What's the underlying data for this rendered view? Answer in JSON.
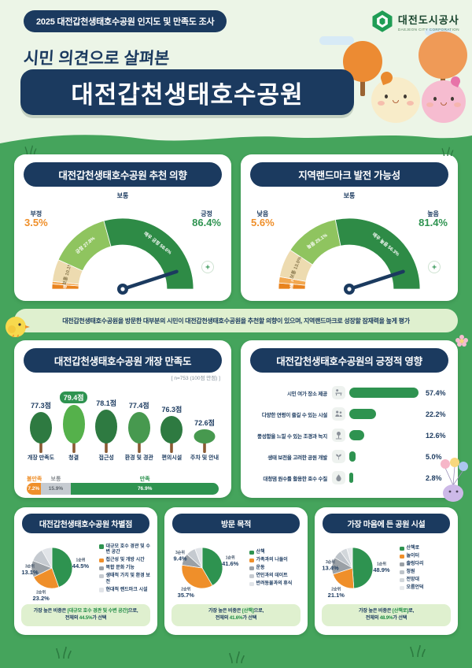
{
  "colors": {
    "page_bg": "#45a45c",
    "mint": "#ecf5e7",
    "navy": "#1b3a5f",
    "strip_green": "#dff0cf",
    "accent_green": "#2e9350",
    "bright_green": "#55b14b",
    "accent_orange": "#ef8f2a",
    "beige": "#eddbb0",
    "gray": "#9aa0a6"
  },
  "top_bar": {
    "badge": "2025 대전갑천생태호수공원 인지도 및 만족도 조사",
    "logo_title": "대전도시공사",
    "logo_subtitle": "DAEJEON CITY CORPORATION"
  },
  "header": {
    "kicker": "시민 의견으로 살펴본",
    "title": "대전갑천생태호수공원"
  },
  "summary": "대전갑천생태호수공원을 방문한 대부분의 시민이 대전갑천생태호수공원을 추천할 의향이 있으며, 지역랜드마크로 성장할 잠재력을 높게 평가",
  "decor": {
    "plus": "+"
  },
  "chart_data": [
    {
      "id": "recommend_gauge",
      "type": "gauge",
      "title": "대전갑천생태호수공원 추천 의향",
      "segments": [
        {
          "label": "매우부정",
          "value": 2.3,
          "pct_label": "2.3%",
          "color": "#e8821d",
          "text_color": "#ffffff"
        },
        {
          "label": "부정",
          "value": 1.2,
          "pct_label": "1.2%",
          "color": "#f2a74f",
          "text_color": "#ffffff"
        },
        {
          "label": "보통",
          "value": 10.1,
          "pct_label": "10.1%",
          "color": "#eddbb0",
          "text_color": "#8a7a50"
        },
        {
          "label": "긍정",
          "value": 27.8,
          "pct_label": "27.8%",
          "color": "#8fc45f",
          "text_color": "#ffffff"
        },
        {
          "label": "매우 긍정",
          "value": 58.6,
          "pct_label": "58.6%",
          "color": "#2e8b46",
          "text_color": "#ffffff"
        }
      ],
      "side_labels": {
        "left_name": "부정",
        "left_value": "3.5%",
        "center_name": "보통",
        "right_name": "긍정",
        "right_value": "86.4%"
      }
    },
    {
      "id": "landmark_gauge",
      "type": "gauge",
      "title": "지역랜드마크 발전 가능성",
      "segments": [
        {
          "label": "매우 낮음",
          "value": 2.8,
          "pct_label": "2.8%",
          "color": "#e8821d",
          "text_color": "#ffffff"
        },
        {
          "label": "낮음",
          "value": 2.8,
          "pct_label": "2.8%",
          "color": "#f2a74f",
          "text_color": "#ffffff"
        },
        {
          "label": "보통",
          "value": 13.0,
          "pct_label": "13.0%",
          "color": "#eddbb0",
          "text_color": "#8a7a50"
        },
        {
          "label": "높음",
          "value": 25.1,
          "pct_label": "25.1%",
          "color": "#8fc45f",
          "text_color": "#ffffff"
        },
        {
          "label": "매우 높음",
          "value": 56.3,
          "pct_label": "56.3%",
          "color": "#2e8b46",
          "text_color": "#ffffff"
        }
      ],
      "side_labels": {
        "left_name": "낮음",
        "left_value": "5.6%",
        "center_name": "보통",
        "right_name": "높음",
        "right_value": "81.4%"
      }
    },
    {
      "id": "open_satisfaction",
      "type": "bar",
      "title": "대전갑천생태호수공원 개장 만족도",
      "note": "[ n=753 (100점 만점) ]",
      "categories": [
        "개장 만족도",
        "청결",
        "접근성",
        "환경 및 경관",
        "편의시설",
        "주차 및 안내"
      ],
      "values": [
        77.3,
        79.4,
        78.1,
        77.4,
        76.3,
        72.6
      ],
      "unit": "점",
      "highlight_index": 1,
      "ylim": [
        70,
        82
      ],
      "stacked_bar": {
        "segments": [
          {
            "label": "불만족",
            "value": 7.2,
            "color": "#ef8f2a"
          },
          {
            "label": "보통",
            "value": 15.9,
            "color": "#c6cbd1"
          },
          {
            "label": "만족",
            "value": 76.9,
            "color": "#2e9350"
          }
        ]
      }
    },
    {
      "id": "positive_effects",
      "type": "bar",
      "orientation": "horizontal",
      "title": "대전갑천생태호수공원의 긍정적 영향",
      "categories": [
        "시민 여가 장소 제공",
        "다양한 연령이 즐길 수 있는 시설",
        "풍성함을 느낄 수 있는 조경과 녹지",
        "생태 보전을 고려한 공원 개발",
        "대청댐 원수를 활용한 호수 수질"
      ],
      "values": [
        57.4,
        22.2,
        12.6,
        5.0,
        2.8
      ],
      "icons": [
        "bench-icon",
        "people-icon",
        "landscape-icon",
        "sprout-icon",
        "droplet-icon"
      ],
      "xlim": [
        0,
        60
      ]
    },
    {
      "id": "differentiation_pie",
      "type": "pie",
      "title": "대전갑천생태호수공원 차별점",
      "slices": [
        {
          "rank": "1순위",
          "label": "대규모 호수 경관 및 수변 공간",
          "value": 44.5,
          "labeled": true,
          "color": "#2e9350"
        },
        {
          "rank": "2순위",
          "label": "접근성 및 개방 시간",
          "value": 23.2,
          "labeled": true,
          "color": "#ef8f2a"
        },
        {
          "rank": "3순위",
          "label": "복합 문화 기능",
          "value": 13.1,
          "labeled": true,
          "color": "#9aa0a6"
        },
        {
          "label": "생태적 가치 및 환경 보전",
          "value": 11.0,
          "labeled": false,
          "color": "#c5cad0"
        },
        {
          "label": "현대적 랜드마크 시설",
          "value": 8.2,
          "labeled": false,
          "color": "#e1e4e8"
        }
      ],
      "conclusion": [
        {
          "t": "가장 높은 비중은 "
        },
        {
          "t": "[대규모 호수 경관 및 수변 공간]",
          "b": true
        },
        {
          "t": "으로,\n전체의 "
        },
        {
          "t": "44.5%",
          "b": true
        },
        {
          "t": "가 선택"
        }
      ]
    },
    {
      "id": "visit_purpose_pie",
      "type": "pie",
      "title": "방문 목적",
      "slices": [
        {
          "rank": "1순위",
          "label": "산책",
          "value": 41.6,
          "labeled": true,
          "color": "#2e9350"
        },
        {
          "rank": "2순위",
          "label": "가족과의 나들이",
          "value": 35.7,
          "labeled": true,
          "color": "#ef8f2a"
        },
        {
          "rank": "3순위",
          "label": "운동",
          "value": 9.4,
          "labeled": true,
          "color": "#9aa0a6"
        },
        {
          "label": "연인과의 데이트",
          "value": 7.5,
          "labeled": false,
          "color": "#c5cad0"
        },
        {
          "label": "반려동물과의 휴식",
          "value": 5.8,
          "labeled": false,
          "color": "#e1e4e8"
        }
      ],
      "conclusion": [
        {
          "t": "가장 높은 비중은 "
        },
        {
          "t": "[산책]",
          "b": true
        },
        {
          "t": "으로,\n전체의 "
        },
        {
          "t": "41.6%",
          "b": true
        },
        {
          "t": "가 선택"
        }
      ]
    },
    {
      "id": "favorite_facility_pie",
      "type": "pie",
      "title": "가장 마음에 든 공원 시설",
      "slices": [
        {
          "rank": "1순위",
          "label": "산책로",
          "value": 48.9,
          "labeled": true,
          "color": "#2e9350"
        },
        {
          "rank": "2순위",
          "label": "놀이터",
          "value": 21.1,
          "labeled": true,
          "color": "#ef8f2a"
        },
        {
          "rank": "3순위",
          "label": "출렁다리",
          "value": 13.4,
          "labeled": true,
          "color": "#9aa0a6"
        },
        {
          "label": "정원",
          "value": 6.6,
          "labeled": false,
          "color": "#bdc3c9"
        },
        {
          "label": "전망대",
          "value": 5.5,
          "labeled": false,
          "color": "#d2d7db"
        },
        {
          "label": "오름언덕",
          "value": 4.5,
          "labeled": false,
          "color": "#e6e9ec"
        }
      ],
      "conclusion": [
        {
          "t": "가장 높은 비중은 "
        },
        {
          "t": "[산책로]",
          "b": true
        },
        {
          "t": "로,\n전체의 "
        },
        {
          "t": "48.9%",
          "b": true
        },
        {
          "t": "가 선택"
        }
      ]
    }
  ]
}
